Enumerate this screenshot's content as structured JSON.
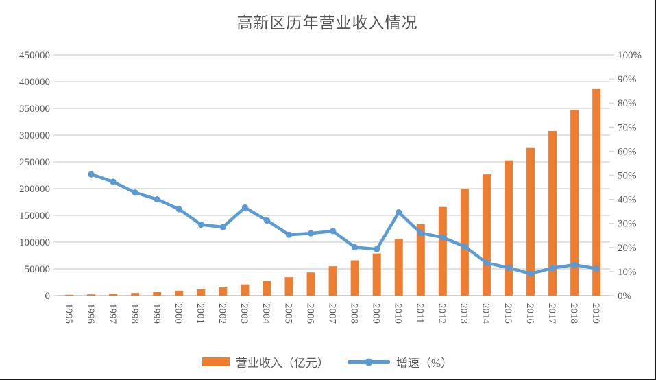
{
  "title": "高新区历年营业收入情况",
  "legend": {
    "bar_label": "营业收入（亿元）",
    "line_label": "增速（%）"
  },
  "colors": {
    "bar": "#ED7D31",
    "line": "#5B9BD5",
    "grid": "#D9D9D9",
    "axis_line": "#BFBFBF",
    "axis_text": "#595959",
    "background": "#FFFFFF"
  },
  "chart_data": {
    "type": "bar",
    "subtype": "bar-line-combo",
    "title": "高新区历年营业收入情况",
    "xlabel": "",
    "ylabel_left": "营业收入（亿元）",
    "ylabel_right": "增速（%）",
    "grid": true,
    "legend_position": "bottom",
    "categories": [
      "1995",
      "1996",
      "1997",
      "1998",
      "1999",
      "2000",
      "2001",
      "2002",
      "2003",
      "2004",
      "2005",
      "2006",
      "2007",
      "2008",
      "2009",
      "2010",
      "2011",
      "2012",
      "2013",
      "2014",
      "2015",
      "2016",
      "2017",
      "2018",
      "2019"
    ],
    "series": [
      {
        "name": "营业收入（亿元）",
        "type": "bar",
        "axis": "left",
        "values": [
          1529,
          2300,
          3388,
          4839,
          6775,
          9209,
          11928,
          15326,
          20939,
          27466,
          34416,
          43320,
          54925,
          65986,
          78707,
          105917,
          133434,
          165758,
          199573,
          226744,
          252963,
          275978,
          307756,
          347000,
          386000
        ]
      },
      {
        "name": "增速（%）",
        "type": "line",
        "axis": "right",
        "values": [
          null,
          50.4,
          47.3,
          42.8,
          40.0,
          35.9,
          29.5,
          28.5,
          36.6,
          31.2,
          25.3,
          25.9,
          26.8,
          20.1,
          19.3,
          34.6,
          26.0,
          24.2,
          20.4,
          13.6,
          11.6,
          9.1,
          11.5,
          12.8,
          11.2
        ]
      }
    ],
    "left_axis": {
      "min": 0,
      "max": 450000,
      "step": 50000,
      "ticks": [
        "0",
        "50000",
        "100000",
        "150000",
        "200000",
        "250000",
        "300000",
        "350000",
        "400000",
        "450000"
      ]
    },
    "right_axis": {
      "min": 0,
      "max": 100,
      "step": 10,
      "ticks": [
        "0%",
        "10%",
        "20%",
        "30%",
        "40%",
        "50%",
        "60%",
        "70%",
        "80%",
        "90%",
        "100%"
      ]
    }
  }
}
